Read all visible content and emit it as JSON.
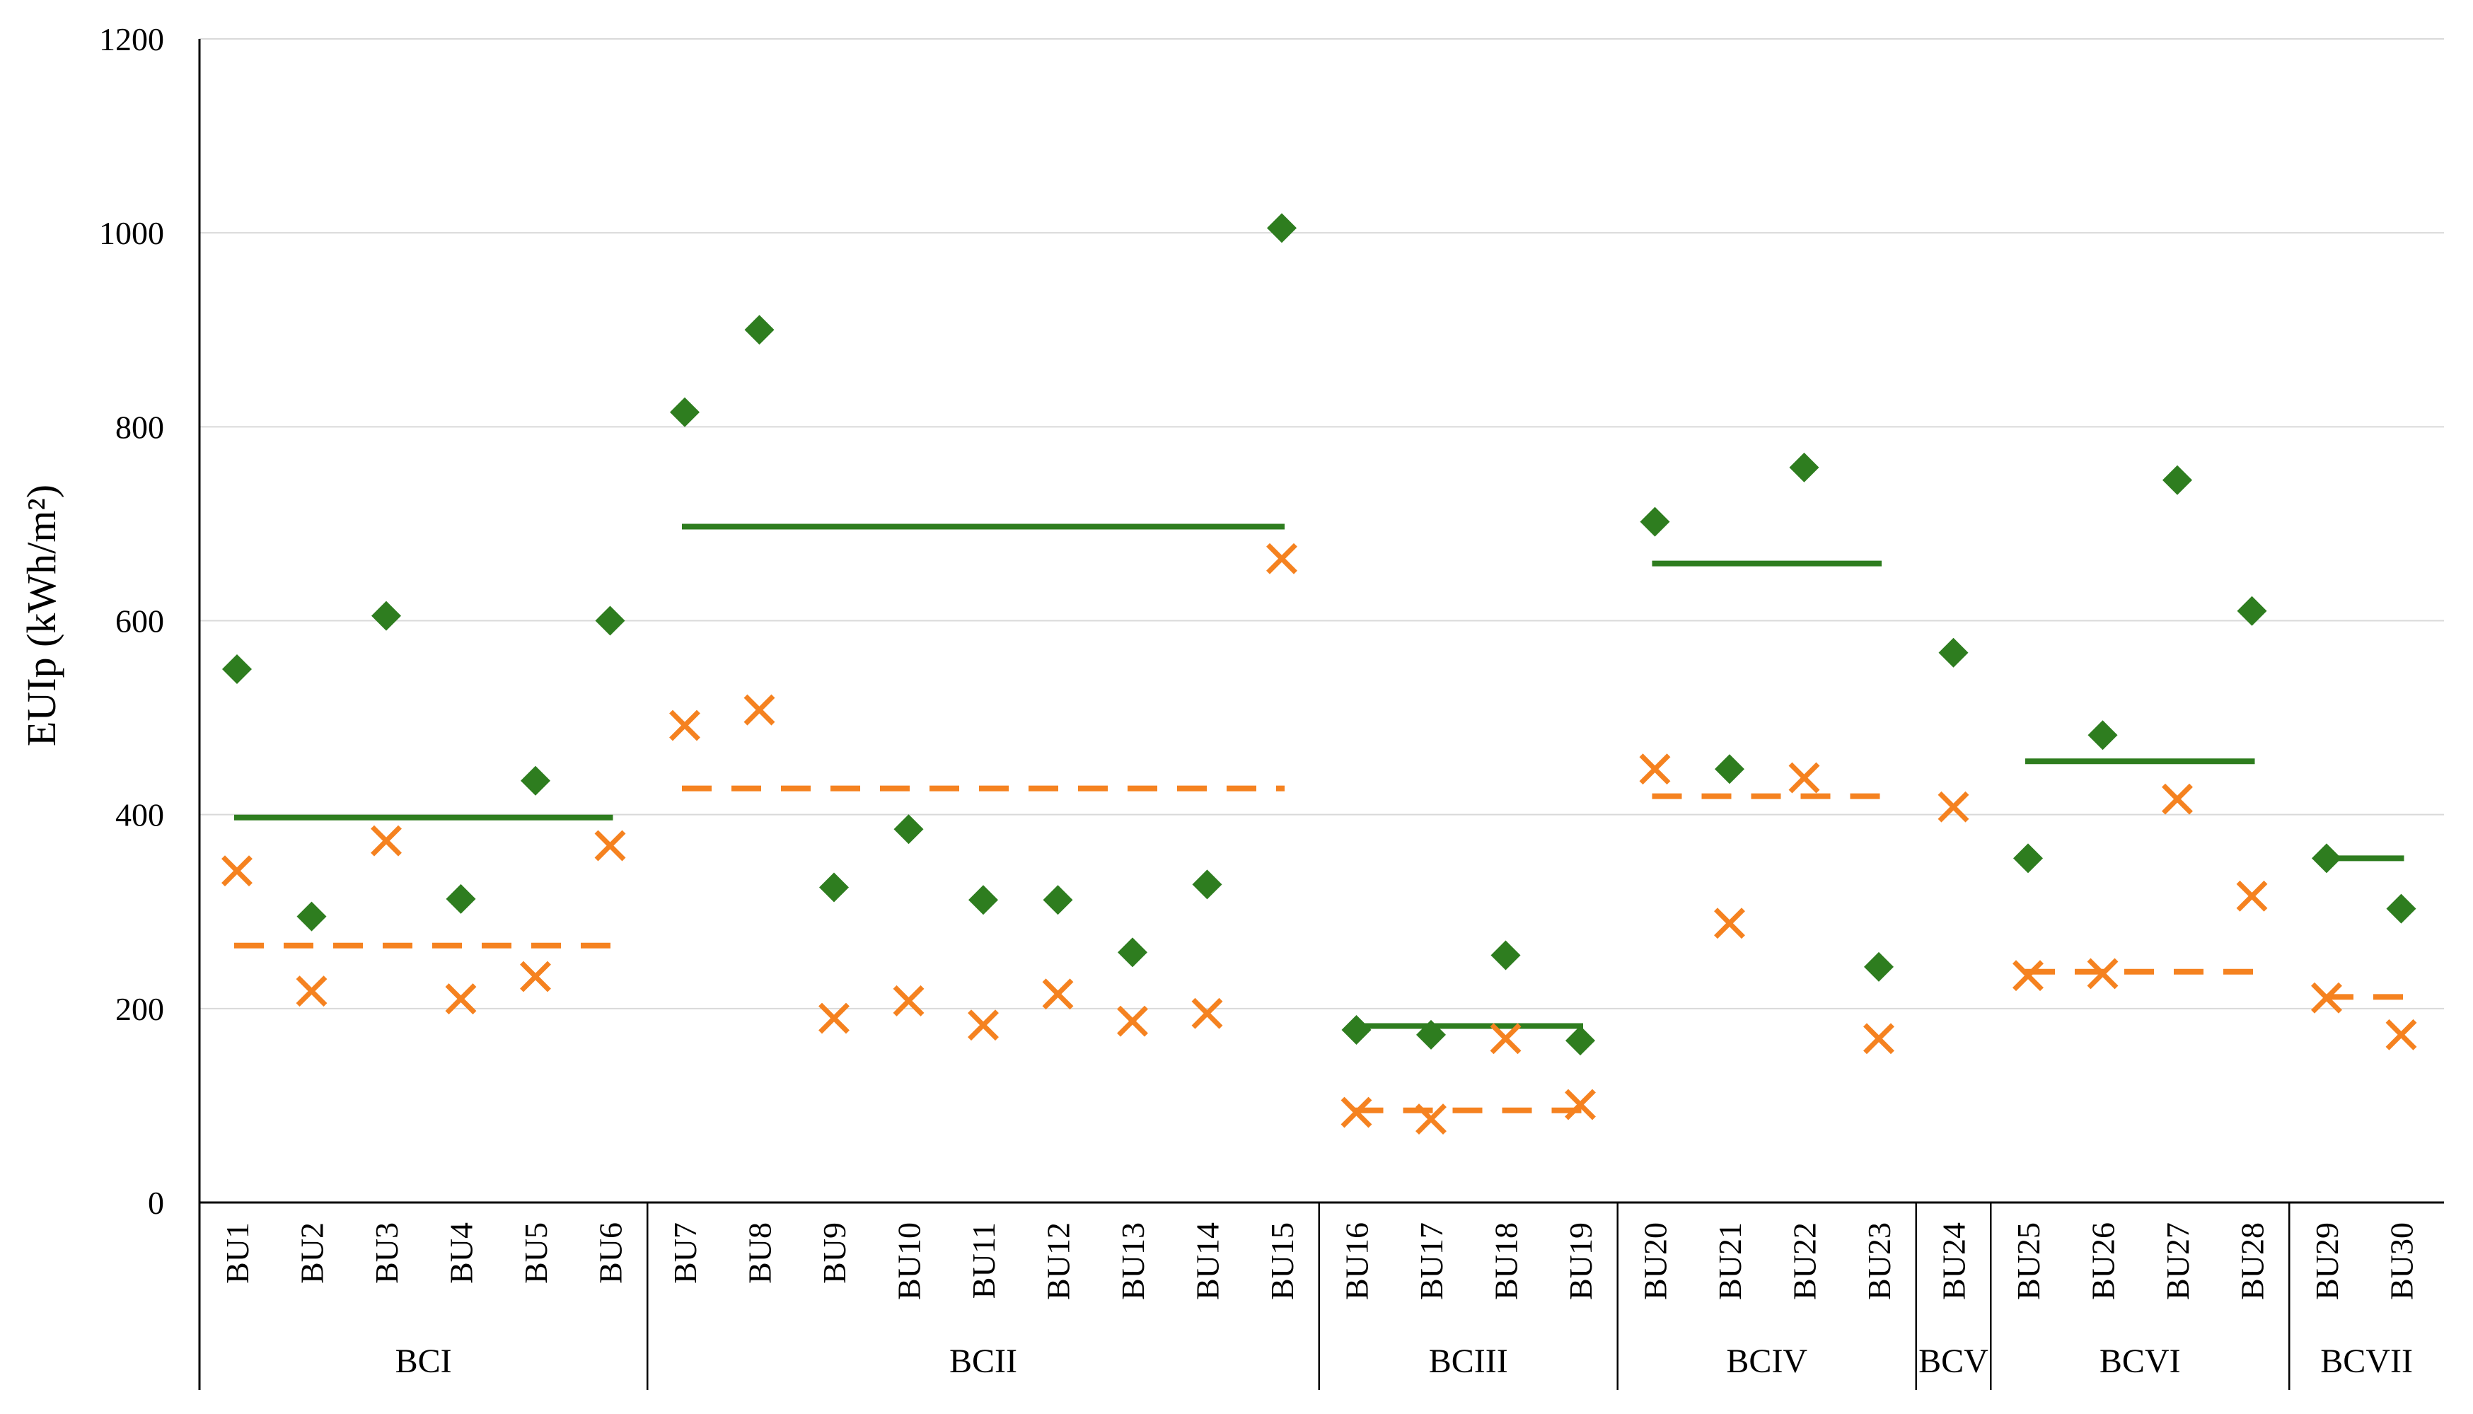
{
  "chart_data": {
    "type": "scatter",
    "title": "",
    "xlabel": "",
    "ylabel": "EUIp (kWh/m²)",
    "ylim": [
      0,
      1200
    ],
    "yticks": [
      0,
      200,
      400,
      600,
      800,
      1000,
      1200
    ],
    "grid": true,
    "categories": [
      "BU1",
      "BU2",
      "BU3",
      "BU4",
      "BU5",
      "BU6",
      "BU7",
      "BU8",
      "BU9",
      "BU10",
      "BU11",
      "BU12",
      "BU13",
      "BU14",
      "BU15",
      "BU16",
      "BU17",
      "BU18",
      "BU19",
      "BU20",
      "BU21",
      "BU22",
      "BU23",
      "BU24",
      "BU25",
      "BU26",
      "BU27",
      "BU28",
      "BU29",
      "BU30"
    ],
    "groups": [
      {
        "name": "BCI",
        "start": 0,
        "end": 5
      },
      {
        "name": "BCII",
        "start": 6,
        "end": 14
      },
      {
        "name": "BCIII",
        "start": 15,
        "end": 18
      },
      {
        "name": "BCIV",
        "start": 19,
        "end": 22
      },
      {
        "name": "BCV",
        "start": 23,
        "end": 23
      },
      {
        "name": "BCVI",
        "start": 24,
        "end": 27
      },
      {
        "name": "BCVII",
        "start": 28,
        "end": 29
      }
    ],
    "series": [
      {
        "name": "EUIp (diamond)",
        "marker": "diamond",
        "color": "#2E7D1F",
        "values": [
          550,
          295,
          605,
          313,
          435,
          600,
          815,
          900,
          325,
          385,
          312,
          312,
          258,
          328,
          1005,
          178,
          173,
          255,
          167,
          702,
          447,
          758,
          243,
          567,
          355,
          482,
          745,
          610,
          355,
          303
        ]
      },
      {
        "name": "EUIp (cross)",
        "marker": "x",
        "color": "#F58220",
        "values": [
          342,
          218,
          373,
          210,
          233,
          368,
          492,
          508,
          190,
          208,
          183,
          215,
          187,
          195,
          664,
          93,
          86,
          169,
          101,
          447,
          288,
          438,
          169,
          408,
          234,
          236,
          416,
          316,
          211,
          173
        ]
      }
    ],
    "group_means": [
      {
        "series": "diamond",
        "style": "solid",
        "color": "#2E7D1F",
        "values": [
          397,
          697,
          182,
          659,
          455,
          355
        ]
      },
      {
        "series": "x",
        "style": "dashed",
        "color": "#F58220",
        "values": [
          265,
          427,
          95,
          419,
          238,
          212
        ]
      }
    ],
    "mean_groups": [
      "BCI",
      "BCII",
      "BCIII",
      "BCIV",
      "BCVI",
      "BCVII"
    ]
  }
}
